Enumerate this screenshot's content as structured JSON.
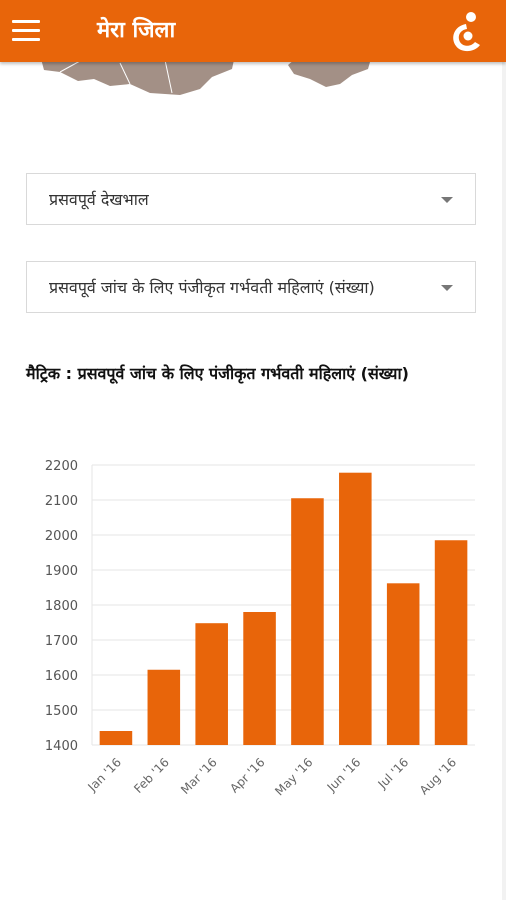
{
  "app": {
    "title": "मेरा जिला",
    "accent_color": "#e8650a",
    "menu_icon": "hamburger-menu-icon",
    "logo_icon": "mother-child-logo-icon"
  },
  "filters": {
    "category": {
      "selected": "प्रसवपूर्व देखभाल"
    },
    "metric": {
      "selected": "प्रसवपूर्व जांच के लिए पंजीकृत गर्भवती महिलाएं (संख्या)"
    }
  },
  "chart_title": "मैट्रिक : प्रसवपूर्व जांच के लिए पंजीकृत गर्भवती महिलाएं (संख्या)",
  "chart_data": {
    "type": "bar",
    "categories": [
      "Jan '16",
      "Feb '16",
      "Mar '16",
      "Apr '16",
      "May '16",
      "Jun '16",
      "Jul '16",
      "Aug '16"
    ],
    "values": [
      1440,
      1615,
      1748,
      1780,
      2105,
      2178,
      1862,
      1985
    ],
    "title": "",
    "xlabel": "",
    "ylabel": "",
    "ylim": [
      1400,
      2200
    ],
    "yticks": [
      1400,
      1500,
      1600,
      1700,
      1800,
      1900,
      2000,
      2100,
      2200
    ],
    "grid": true,
    "bar_color": "#e8650a"
  }
}
